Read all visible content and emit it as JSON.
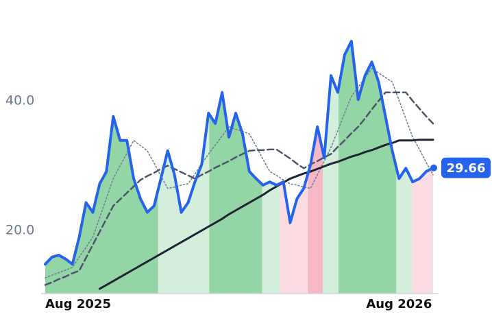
{
  "chart_data": {
    "type": "line",
    "categories": [
      "Aug 2025",
      null,
      null,
      null,
      null,
      null,
      null,
      null,
      null,
      null,
      null,
      null,
      null,
      null,
      null,
      null,
      null,
      null,
      null,
      null,
      null,
      null,
      null,
      null,
      null,
      null,
      null,
      null,
      null,
      null,
      null,
      null,
      null,
      null,
      null,
      null,
      null,
      null,
      null,
      null,
      null,
      null,
      null,
      null,
      null,
      null,
      null,
      null,
      null,
      null,
      null,
      null,
      "Aug 2026",
      null,
      null,
      null,
      null,
      null
    ],
    "ylim": [
      10.27,
      55.56
    ],
    "yticks": [
      {
        "value": 20,
        "label": "20.0"
      },
      {
        "value": 40,
        "label": "40.0"
      }
    ],
    "series": [
      {
        "color": "#2563eb",
        "style": "solid",
        "width": 4,
        "values": [
          14.8,
          15.9,
          16.2,
          15.6,
          14.8,
          19.0,
          24.3,
          22.8,
          27.2,
          29.1,
          37.6,
          33.9,
          33.9,
          28.0,
          24.9,
          22.8,
          23.8,
          28.0,
          32.3,
          28.6,
          22.8,
          24.3,
          27.5,
          30.2,
          38.1,
          36.5,
          41.3,
          34.4,
          38.1,
          34.9,
          29.1,
          28.0,
          27.0,
          27.5,
          27.0,
          27.5,
          21.2,
          24.9,
          26.5,
          30.2,
          36.0,
          31.2,
          43.9,
          41.3,
          47.1,
          49.2,
          40.2,
          43.9,
          46.0,
          42.9,
          37.6,
          32.3,
          28.0,
          29.6,
          27.5,
          28.0,
          29.1,
          29.66
        ]
      },
      {
        "color": "#1e2433",
        "style": "solid",
        "width": 3,
        "values": [
          null,
          null,
          null,
          null,
          null,
          null,
          null,
          null,
          11.0,
          11.6,
          12.2,
          12.8,
          13.4,
          14.0,
          14.6,
          15.2,
          15.8,
          16.4,
          17.0,
          17.6,
          18.2,
          18.8,
          19.4,
          20.0,
          20.6,
          21.2,
          21.8,
          22.5,
          23.1,
          23.7,
          24.3,
          24.9,
          25.5,
          26.2,
          26.8,
          27.4,
          28.0,
          28.4,
          28.8,
          29.1,
          29.5,
          29.9,
          30.3,
          30.6,
          31.0,
          31.4,
          31.7,
          32.1,
          32.4,
          32.8,
          33.2,
          33.5,
          33.9,
          33.9,
          33.9,
          34.0,
          34.0,
          34.0
        ]
      },
      {
        "color": "#4a5568",
        "style": "dashed",
        "width": 2.5,
        "values": [
          11.6,
          12.0,
          12.5,
          12.9,
          13.4,
          13.8,
          15.8,
          17.8,
          19.8,
          21.8,
          23.8,
          24.8,
          25.8,
          26.8,
          27.8,
          28.4,
          28.9,
          29.5,
          30.0,
          29.5,
          29.0,
          28.5,
          28.0,
          28.6,
          29.1,
          29.7,
          30.2,
          30.7,
          31.3,
          31.8,
          32.3,
          32.4,
          32.4,
          32.5,
          32.5,
          31.8,
          31.1,
          30.3,
          29.6,
          30.2,
          30.7,
          31.3,
          31.8,
          32.9,
          33.9,
          35.0,
          36.0,
          37.3,
          38.7,
          40.0,
          41.3,
          41.3,
          41.3,
          41.3,
          40.0,
          38.8,
          37.6,
          36.5
        ]
      },
      {
        "color": "#718096",
        "style": "dotted",
        "width": 1.6,
        "values": [
          12.7,
          13.1,
          13.5,
          13.9,
          14.3,
          15.9,
          17.4,
          19.0,
          22.0,
          25.0,
          28.0,
          30.0,
          31.9,
          33.9,
          33.1,
          32.3,
          30.4,
          28.4,
          26.5,
          26.7,
          27.0,
          27.2,
          28.7,
          30.3,
          31.8,
          33.2,
          34.6,
          36.0,
          35.6,
          35.3,
          34.9,
          33.0,
          31.0,
          29.1,
          28.5,
          27.8,
          27.2,
          27.0,
          26.7,
          26.5,
          28.6,
          30.7,
          32.8,
          35.4,
          38.1,
          40.7,
          42.1,
          43.6,
          45.0,
          44.3,
          43.6,
          42.9,
          40.1,
          37.2,
          34.4,
          32.5,
          30.5,
          28.6
        ]
      }
    ],
    "bands": [
      {
        "from": 0,
        "to": 16.6,
        "color": "#94d5a5"
      },
      {
        "from": 16.6,
        "to": 24.1,
        "color": "#d3eedb"
      },
      {
        "from": 24.1,
        "to": 31.9,
        "color": "#94d5a5"
      },
      {
        "from": 31.9,
        "to": 34.5,
        "color": "#d3eedb"
      },
      {
        "from": 34.5,
        "to": 38.6,
        "color": "#fcdce3"
      },
      {
        "from": 38.6,
        "to": 40.8,
        "color": "#f7b8c6"
      },
      {
        "from": 40.8,
        "to": 43.1,
        "color": "#d3eedb"
      },
      {
        "from": 43.1,
        "to": 51.6,
        "color": "#94d5a5"
      },
      {
        "from": 51.6,
        "to": 53.9,
        "color": "#d3eedb"
      },
      {
        "from": 53.9,
        "to": 57,
        "color": "#fcdce3"
      }
    ]
  }
}
